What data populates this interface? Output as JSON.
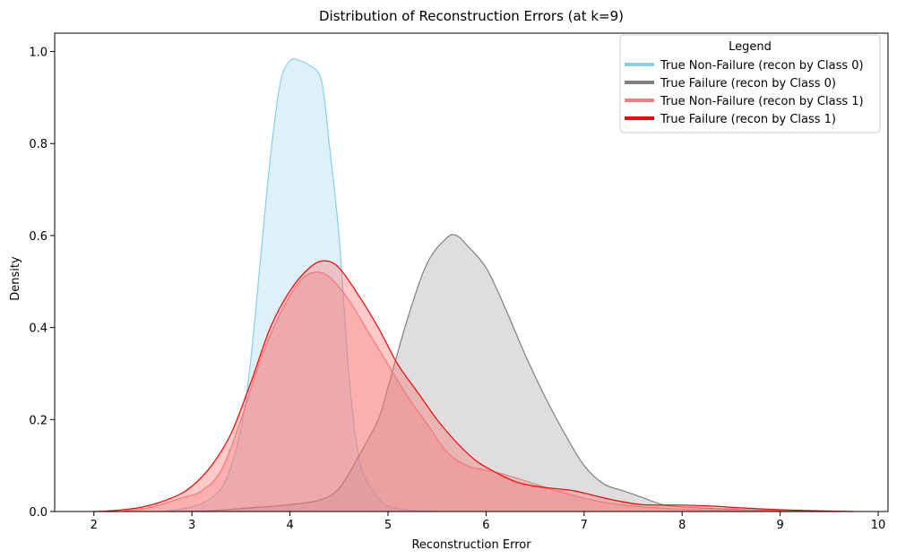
{
  "chart_data": {
    "type": "area",
    "title": "Distribution of Reconstruction Errors (at k=9)",
    "xlabel": "Reconstruction Error",
    "ylabel": "Density",
    "xlim": [
      1.6,
      10.1
    ],
    "ylim": [
      0,
      1.04
    ],
    "xticks": [
      2,
      3,
      4,
      5,
      6,
      7,
      8,
      9,
      10
    ],
    "yticks": [
      0.0,
      0.2,
      0.4,
      0.6,
      0.8,
      1.0
    ],
    "grid": false,
    "legend": {
      "title": "Legend",
      "placement": "top-right",
      "entries": [
        "True Non-Failure (recon by Class 0)",
        "True Failure (recon by Class 0)",
        "True Non-Failure (recon by Class 1)",
        "True Failure (recon by Class 1)"
      ]
    },
    "series": [
      {
        "name": "True Non-Failure (recon by Class 0)",
        "line_color": "#87ceeb",
        "fill_color": "#87ceeb",
        "fill_opacity": 0.28,
        "points": [
          [
            2.7,
            0
          ],
          [
            3.0,
            0.01
          ],
          [
            3.2,
            0.03
          ],
          [
            3.35,
            0.07
          ],
          [
            3.5,
            0.18
          ],
          [
            3.6,
            0.33
          ],
          [
            3.7,
            0.55
          ],
          [
            3.8,
            0.77
          ],
          [
            3.9,
            0.93
          ],
          [
            4.0,
            0.98
          ],
          [
            4.1,
            0.98
          ],
          [
            4.2,
            0.97
          ],
          [
            4.3,
            0.95
          ],
          [
            4.35,
            0.9
          ],
          [
            4.4,
            0.8
          ],
          [
            4.5,
            0.6
          ],
          [
            4.6,
            0.3
          ],
          [
            4.7,
            0.12
          ],
          [
            4.8,
            0.06
          ],
          [
            4.9,
            0.03
          ],
          [
            5.0,
            0.012
          ],
          [
            5.2,
            0.003
          ],
          [
            5.5,
            0
          ]
        ]
      },
      {
        "name": "True Failure (recon by Class 0)",
        "line_color": "#808080",
        "fill_color": "#a9a9a9",
        "fill_opacity": 0.38,
        "points": [
          [
            2.8,
            0
          ],
          [
            3.2,
            0.002
          ],
          [
            3.6,
            0.008
          ],
          [
            4.0,
            0.015
          ],
          [
            4.3,
            0.025
          ],
          [
            4.5,
            0.05
          ],
          [
            4.7,
            0.12
          ],
          [
            4.9,
            0.2
          ],
          [
            5.0,
            0.27
          ],
          [
            5.2,
            0.42
          ],
          [
            5.4,
            0.54
          ],
          [
            5.6,
            0.595
          ],
          [
            5.7,
            0.6
          ],
          [
            5.8,
            0.58
          ],
          [
            6.0,
            0.53
          ],
          [
            6.2,
            0.44
          ],
          [
            6.4,
            0.34
          ],
          [
            6.6,
            0.25
          ],
          [
            6.8,
            0.17
          ],
          [
            7.0,
            0.1
          ],
          [
            7.2,
            0.06
          ],
          [
            7.4,
            0.045
          ],
          [
            7.6,
            0.03
          ],
          [
            7.8,
            0.015
          ],
          [
            8.0,
            0.01
          ],
          [
            8.5,
            0.005
          ],
          [
            9.0,
            0.002
          ],
          [
            9.4,
            0
          ]
        ]
      },
      {
        "name": "True Non-Failure (recon by Class 1)",
        "line_color": "#f08080",
        "fill_color": "#f08080",
        "fill_opacity": 0.32,
        "points": [
          [
            2.3,
            0
          ],
          [
            2.6,
            0.01
          ],
          [
            2.9,
            0.03
          ],
          [
            3.1,
            0.045
          ],
          [
            3.3,
            0.09
          ],
          [
            3.5,
            0.2
          ],
          [
            3.7,
            0.33
          ],
          [
            3.9,
            0.43
          ],
          [
            4.1,
            0.5
          ],
          [
            4.25,
            0.52
          ],
          [
            4.4,
            0.51
          ],
          [
            4.6,
            0.46
          ],
          [
            4.8,
            0.39
          ],
          [
            5.0,
            0.32
          ],
          [
            5.2,
            0.25
          ],
          [
            5.4,
            0.19
          ],
          [
            5.6,
            0.13
          ],
          [
            5.8,
            0.1
          ],
          [
            6.0,
            0.09
          ],
          [
            6.2,
            0.08
          ],
          [
            6.5,
            0.06
          ],
          [
            6.8,
            0.04
          ],
          [
            7.2,
            0.02
          ],
          [
            7.6,
            0.01
          ],
          [
            8.0,
            0.005
          ],
          [
            8.5,
            0.002
          ],
          [
            9.0,
            0
          ]
        ]
      },
      {
        "name": "True Failure (recon by Class 1)",
        "line_color": "#ff0000",
        "fill_color": "#ff6666",
        "fill_opacity": 0.35,
        "points": [
          [
            2.0,
            0
          ],
          [
            2.2,
            0.002
          ],
          [
            2.5,
            0.01
          ],
          [
            2.8,
            0.03
          ],
          [
            3.0,
            0.055
          ],
          [
            3.2,
            0.1
          ],
          [
            3.4,
            0.17
          ],
          [
            3.6,
            0.28
          ],
          [
            3.8,
            0.4
          ],
          [
            4.0,
            0.48
          ],
          [
            4.2,
            0.53
          ],
          [
            4.35,
            0.545
          ],
          [
            4.5,
            0.53
          ],
          [
            4.7,
            0.47
          ],
          [
            4.9,
            0.4
          ],
          [
            5.1,
            0.32
          ],
          [
            5.3,
            0.26
          ],
          [
            5.5,
            0.2
          ],
          [
            5.7,
            0.15
          ],
          [
            5.9,
            0.11
          ],
          [
            6.1,
            0.085
          ],
          [
            6.3,
            0.065
          ],
          [
            6.5,
            0.055
          ],
          [
            6.7,
            0.05
          ],
          [
            6.9,
            0.045
          ],
          [
            7.1,
            0.035
          ],
          [
            7.3,
            0.025
          ],
          [
            7.6,
            0.015
          ],
          [
            8.0,
            0.014
          ],
          [
            8.3,
            0.012
          ],
          [
            8.6,
            0.008
          ],
          [
            9.0,
            0.004
          ],
          [
            9.5,
            0.001
          ],
          [
            9.75,
            0
          ]
        ]
      }
    ]
  }
}
